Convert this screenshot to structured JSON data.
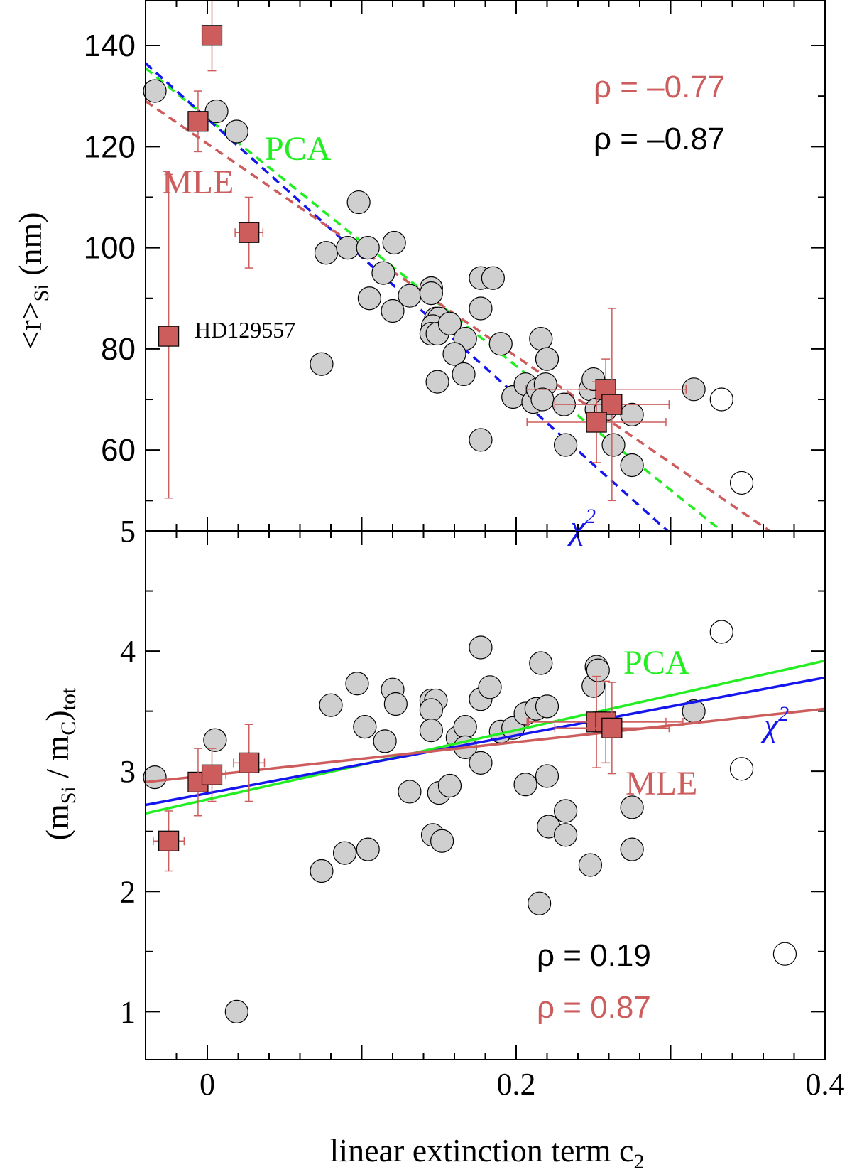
{
  "colors": {
    "gray_fill": "#cfcfcf",
    "red": "#cd5c5c",
    "green": "#22ee22",
    "blue": "#1515ee",
    "black": "#000000"
  },
  "chart_data": [
    {
      "type": "scatter",
      "panel": "top",
      "x_range": [
        -0.04,
        0.4
      ],
      "ylim": [
        44,
        149
      ],
      "yticks": [
        60,
        80,
        100,
        120,
        140
      ],
      "ytick_labels": [
        "60",
        "80",
        "100",
        "120",
        "140"
      ],
      "xticks": [
        0,
        0.2,
        0.4
      ],
      "ylabel_main": "<r>",
      "ylabel_sub": "Si",
      "ylabel_unit": " (nm)",
      "annotations": {
        "pca": "PCA",
        "mle": "MLE",
        "chi_base": "χ",
        "chi_exp": "2",
        "star": "HD129557"
      },
      "rho": [
        {
          "label": "ρ = –0.77",
          "color": "red"
        },
        {
          "label": "ρ = –0.87",
          "color": "black"
        }
      ],
      "gray_points": [
        [
          -0.034,
          131
        ],
        [
          0.006,
          127
        ],
        [
          0.019,
          123
        ],
        [
          0.098,
          109
        ],
        [
          0.077,
          99
        ],
        [
          0.091,
          100
        ],
        [
          0.104,
          100
        ],
        [
          0.121,
          101
        ],
        [
          0.114,
          95
        ],
        [
          0.105,
          90
        ],
        [
          0.12,
          87.5
        ],
        [
          0.131,
          90.5
        ],
        [
          0.145,
          92
        ],
        [
          0.145,
          91
        ],
        [
          0.148,
          86
        ],
        [
          0.15,
          86
        ],
        [
          0.146,
          84.5
        ],
        [
          0.145,
          83
        ],
        [
          0.149,
          83
        ],
        [
          0.157,
          85
        ],
        [
          0.167,
          82
        ],
        [
          0.16,
          79
        ],
        [
          0.166,
          75
        ],
        [
          0.149,
          73.5
        ],
        [
          0.177,
          94
        ],
        [
          0.185,
          94
        ],
        [
          0.177,
          88
        ],
        [
          0.19,
          81
        ],
        [
          0.177,
          62
        ],
        [
          0.074,
          77
        ],
        [
          0.198,
          70.5
        ],
        [
          0.206,
          73
        ],
        [
          0.211,
          69.5
        ],
        [
          0.214,
          72
        ],
        [
          0.216,
          82
        ],
        [
          0.22,
          78
        ],
        [
          0.22,
          78
        ],
        [
          0.219,
          73
        ],
        [
          0.217,
          70
        ],
        [
          0.231,
          69
        ],
        [
          0.248,
          72
        ],
        [
          0.25,
          74
        ],
        [
          0.252,
          68
        ],
        [
          0.258,
          68
        ],
        [
          0.263,
          61
        ],
        [
          0.232,
          61
        ],
        [
          0.275,
          67
        ],
        [
          0.275,
          57
        ],
        [
          0.315,
          72
        ]
      ],
      "open_points": [
        [
          0.333,
          70
        ],
        [
          0.346,
          53.5
        ]
      ],
      "red_points": [
        {
          "x": 0.003,
          "y": 142,
          "xerr": 0.005,
          "yerr": 7
        },
        {
          "x": -0.006,
          "y": 125,
          "xerr": 0.005,
          "yerr": 6
        },
        {
          "x": 0.027,
          "y": 103,
          "xerr": 0.009,
          "yerr": 7
        },
        {
          "x": -0.025,
          "y": 82.5,
          "xerr": 0.006,
          "yerr": 32
        },
        {
          "x": 0.258,
          "y": 72,
          "xerr": 0.052,
          "yerr": 6
        },
        {
          "x": 0.262,
          "y": 69,
          "xerr": 0.037,
          "yerr": 19
        },
        {
          "x": 0.252,
          "y": 65.5,
          "xerr": 0.045,
          "yerr": 8
        }
      ],
      "fits": [
        {
          "name": "PCA",
          "color": "green",
          "style": "dashed",
          "x": [
            -0.04,
            0.333
          ],
          "y": [
            135.5,
            44
          ]
        },
        {
          "name": "χ²",
          "color": "blue",
          "style": "dashed",
          "x": [
            -0.04,
            0.298
          ],
          "y": [
            136.5,
            44
          ]
        },
        {
          "name": "MLE",
          "color": "red",
          "style": "dashed",
          "x": [
            -0.04,
            0.364
          ],
          "y": [
            129,
            44
          ]
        }
      ]
    },
    {
      "type": "scatter",
      "panel": "bottom",
      "x_range": [
        -0.04,
        0.4
      ],
      "ylim": [
        0.6,
        5.0
      ],
      "yticks": [
        1,
        2,
        3,
        4,
        5
      ],
      "ytick_labels": [
        "1",
        "2",
        "3",
        "4",
        "5"
      ],
      "xticks": [
        0,
        0.2,
        0.4
      ],
      "xtick_labels": [
        "0",
        "0.2",
        "0.4"
      ],
      "xlabel_main": "linear extinction term c",
      "xlabel_sub": "2",
      "ylabel_open": "(m",
      "ylabel_sub1": "Si",
      "ylabel_mid": " / m",
      "ylabel_sub2": "C",
      "ylabel_close": ")",
      "ylabel_sub3": "tot",
      "annotations": {
        "pca": "PCA",
        "mle": "MLE",
        "chi_base": "χ",
        "chi_exp": "2"
      },
      "rho": [
        {
          "label": "ρ = 0.19",
          "color": "black"
        },
        {
          "label": "ρ = 0.87",
          "color": "red"
        }
      ],
      "gray_points": [
        [
          -0.034,
          2.95
        ],
        [
          0.005,
          3.26
        ],
        [
          0.019,
          1.0
        ],
        [
          0.074,
          2.17
        ],
        [
          0.08,
          3.55
        ],
        [
          0.089,
          2.32
        ],
        [
          0.097,
          3.73
        ],
        [
          0.102,
          3.37
        ],
        [
          0.104,
          2.35
        ],
        [
          0.115,
          3.25
        ],
        [
          0.12,
          3.68
        ],
        [
          0.122,
          3.56
        ],
        [
          0.131,
          2.83
        ],
        [
          0.145,
          3.59
        ],
        [
          0.148,
          3.59
        ],
        [
          0.145,
          3.51
        ],
        [
          0.145,
          3.34
        ],
        [
          0.146,
          2.47
        ],
        [
          0.15,
          2.82
        ],
        [
          0.152,
          2.42
        ],
        [
          0.157,
          2.88
        ],
        [
          0.162,
          3.28
        ],
        [
          0.167,
          3.37
        ],
        [
          0.167,
          3.2
        ],
        [
          0.177,
          4.03
        ],
        [
          0.177,
          3.6
        ],
        [
          0.183,
          3.7
        ],
        [
          0.177,
          3.07
        ],
        [
          0.19,
          3.33
        ],
        [
          0.198,
          3.36
        ],
        [
          0.206,
          3.48
        ],
        [
          0.206,
          2.89
        ],
        [
          0.213,
          3.52
        ],
        [
          0.216,
          3.9
        ],
        [
          0.22,
          3.54
        ],
        [
          0.22,
          2.96
        ],
        [
          0.221,
          2.54
        ],
        [
          0.215,
          1.9
        ],
        [
          0.232,
          2.67
        ],
        [
          0.232,
          2.47
        ],
        [
          0.248,
          2.22
        ],
        [
          0.25,
          3.71
        ],
        [
          0.252,
          3.87
        ],
        [
          0.253,
          3.84
        ],
        [
          0.275,
          2.7
        ],
        [
          0.275,
          2.35
        ],
        [
          0.315,
          3.5
        ]
      ],
      "open_points": [
        [
          0.333,
          4.16
        ],
        [
          0.346,
          3.02
        ],
        [
          0.374,
          1.48
        ]
      ],
      "red_points": [
        {
          "x": -0.025,
          "y": 2.42,
          "xerr": 0.01,
          "yerr": 0.25
        },
        {
          "x": -0.006,
          "y": 2.91,
          "xerr": 0.006,
          "yerr": 0.28
        },
        {
          "x": 0.003,
          "y": 2.97,
          "xerr": 0.009,
          "yerr": 0.22
        },
        {
          "x": 0.027,
          "y": 3.07,
          "xerr": 0.01,
          "yerr": 0.32
        },
        {
          "x": 0.252,
          "y": 3.41,
          "xerr": 0.045,
          "yerr": 0.38
        },
        {
          "x": 0.258,
          "y": 3.41,
          "xerr": 0.05,
          "yerr": 0.34
        },
        {
          "x": 0.262,
          "y": 3.36,
          "xerr": 0.037,
          "yerr": 0.38
        }
      ],
      "fits": [
        {
          "name": "PCA",
          "color": "green",
          "style": "solid",
          "x": [
            -0.04,
            0.4
          ],
          "y": [
            2.65,
            3.92
          ]
        },
        {
          "name": "χ²",
          "color": "blue",
          "style": "solid",
          "x": [
            -0.04,
            0.4
          ],
          "y": [
            2.72,
            3.78
          ]
        },
        {
          "name": "MLE",
          "color": "red",
          "style": "solid",
          "x": [
            -0.04,
            0.4
          ],
          "y": [
            2.91,
            3.52
          ]
        }
      ]
    }
  ]
}
